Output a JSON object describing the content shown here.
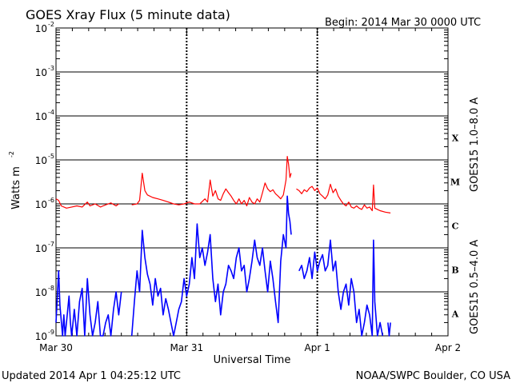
{
  "header": {
    "title": "GOES Xray Flux (5 minute data)",
    "begin": "Begin:  2014 Mar 30 0000 UTC"
  },
  "footer": {
    "updated": "Updated 2014 Apr  1 04:25:12 UTC",
    "credit": "NOAA/SWPC Boulder, CO USA"
  },
  "chart_data": {
    "type": "line",
    "title": "GOES Xray Flux (5 minute data)",
    "xlabel": "Universal Time",
    "ylabel": "Watts m",
    "ylabel_exp": "-2",
    "yscale": "log",
    "ylim": [
      1e-09,
      0.01
    ],
    "xlim_days": [
      0,
      3
    ],
    "x_ticks": [
      "Mar 30",
      "Mar 31",
      "Apr 1",
      "Apr 2"
    ],
    "y_ticks": [
      {
        "base": "10",
        "exp": "-2"
      },
      {
        "base": "10",
        "exp": "-3"
      },
      {
        "base": "10",
        "exp": "-4"
      },
      {
        "base": "10",
        "exp": "-5"
      },
      {
        "base": "10",
        "exp": "-6"
      },
      {
        "base": "10",
        "exp": "-7"
      },
      {
        "base": "10",
        "exp": "-8"
      },
      {
        "base": "10",
        "exp": "-9"
      }
    ],
    "flare_classes": [
      "X",
      "M",
      "C",
      "B",
      "A"
    ],
    "grid": true,
    "series": [
      {
        "name": "GOES15 1.0–8.0 A",
        "color": "#ff0000",
        "points": [
          [
            0.0,
            1.3e-06
          ],
          [
            0.02,
            1.2e-06
          ],
          [
            0.04,
            9e-07
          ],
          [
            0.08,
            8e-07
          ],
          [
            0.12,
            8.5e-07
          ],
          [
            0.16,
            9e-07
          ],
          [
            0.2,
            8.5e-07
          ],
          [
            0.24,
            1.1e-06
          ],
          [
            0.26,
            9e-07
          ],
          [
            0.3,
            1e-06
          ],
          [
            0.34,
            8.5e-07
          ],
          [
            0.38,
            9.5e-07
          ],
          [
            0.42,
            1.05e-06
          ],
          [
            0.46,
            9e-07
          ],
          [
            0.48,
            1e-06
          ],
          [
            0.55,
            null
          ],
          [
            0.58,
            9.5e-07
          ],
          [
            0.62,
            1e-06
          ],
          [
            0.64,
            1.2e-06
          ],
          [
            0.66,
            5e-06
          ],
          [
            0.68,
            2e-06
          ],
          [
            0.7,
            1.6e-06
          ],
          [
            0.74,
            1.4e-06
          ],
          [
            0.78,
            1.3e-06
          ],
          [
            0.82,
            1.2e-06
          ],
          [
            0.86,
            1.1e-06
          ],
          [
            0.9,
            1e-06
          ],
          [
            0.94,
            9.5e-07
          ],
          [
            0.98,
            1e-06
          ],
          [
            1.02,
            1.1e-06
          ],
          [
            1.06,
            1e-06
          ],
          [
            1.1,
            1e-06
          ],
          [
            1.14,
            1.3e-06
          ],
          [
            1.16,
            1.1e-06
          ],
          [
            1.18,
            3.5e-06
          ],
          [
            1.2,
            1.5e-06
          ],
          [
            1.22,
            2e-06
          ],
          [
            1.24,
            1.3e-06
          ],
          [
            1.26,
            1.2e-06
          ],
          [
            1.28,
            1.7e-06
          ],
          [
            1.3,
            2.2e-06
          ],
          [
            1.32,
            1.8e-06
          ],
          [
            1.34,
            1.5e-06
          ],
          [
            1.36,
            1.2e-06
          ],
          [
            1.38,
            1e-06
          ],
          [
            1.4,
            1.3e-06
          ],
          [
            1.42,
            1e-06
          ],
          [
            1.44,
            1.2e-06
          ],
          [
            1.46,
            9e-07
          ],
          [
            1.48,
            1.4e-06
          ],
          [
            1.5,
            1.1e-06
          ],
          [
            1.52,
            1e-06
          ],
          [
            1.54,
            1.3e-06
          ],
          [
            1.56,
            1.1e-06
          ],
          [
            1.58,
            1.8e-06
          ],
          [
            1.6,
            3e-06
          ],
          [
            1.62,
            2.2e-06
          ],
          [
            1.64,
            1.9e-06
          ],
          [
            1.66,
            2.1e-06
          ],
          [
            1.68,
            1.7e-06
          ],
          [
            1.7,
            1.5e-06
          ],
          [
            1.72,
            1.3e-06
          ],
          [
            1.74,
            1.6e-06
          ],
          [
            1.76,
            3.5e-06
          ],
          [
            1.77,
            1.2e-05
          ],
          [
            1.78,
            8e-06
          ],
          [
            1.79,
            4e-06
          ],
          [
            1.8,
            5e-06
          ],
          [
            1.82,
            null
          ],
          [
            1.84,
            2.2e-06
          ],
          [
            1.86,
            2e-06
          ],
          [
            1.88,
            1.7e-06
          ],
          [
            1.9,
            2.1e-06
          ],
          [
            1.92,
            1.9e-06
          ],
          [
            1.94,
            2.3e-06
          ],
          [
            1.96,
            2.5e-06
          ],
          [
            1.98,
            2e-06
          ],
          [
            2.0,
            2.3e-06
          ],
          [
            2.02,
            1.7e-06
          ],
          [
            2.04,
            1.5e-06
          ],
          [
            2.06,
            1.3e-06
          ],
          [
            2.08,
            1.6e-06
          ],
          [
            2.1,
            2.8e-06
          ],
          [
            2.12,
            1.8e-06
          ],
          [
            2.14,
            2.2e-06
          ],
          [
            2.16,
            1.5e-06
          ],
          [
            2.18,
            1.2e-06
          ],
          [
            2.2,
            1e-06
          ],
          [
            2.22,
            9e-07
          ],
          [
            2.24,
            1.1e-06
          ],
          [
            2.26,
            8.5e-07
          ],
          [
            2.28,
            8e-07
          ],
          [
            2.3,
            9e-07
          ],
          [
            2.32,
            8e-07
          ],
          [
            2.34,
            7.5e-07
          ],
          [
            2.36,
            9.5e-07
          ],
          [
            2.38,
            8e-07
          ],
          [
            2.4,
            8.5e-07
          ],
          [
            2.42,
            7e-07
          ],
          [
            2.43,
            2.7e-06
          ],
          [
            2.44,
            8e-07
          ],
          [
            2.46,
            7.5e-07
          ],
          [
            2.48,
            7e-07
          ],
          [
            2.52,
            6.5e-07
          ],
          [
            2.56,
            6.2e-07
          ]
        ]
      },
      {
        "name": "GOES15 0.5–4.0 A",
        "color": "#0000ff",
        "points": [
          [
            0.0,
            2e-09
          ],
          [
            0.02,
            3e-08
          ],
          [
            0.03,
            5e-09
          ],
          [
            0.05,
            1e-09
          ],
          [
            0.06,
            3e-09
          ],
          [
            0.07,
            1e-09
          ],
          [
            0.08,
            2e-09
          ],
          [
            0.1,
            8e-09
          ],
          [
            0.11,
            2e-09
          ],
          [
            0.12,
            1e-09
          ],
          [
            0.14,
            4e-09
          ],
          [
            0.16,
            1e-09
          ],
          [
            0.18,
            6e-09
          ],
          [
            0.2,
            1.2e-08
          ],
          [
            0.22,
            1e-09
          ],
          [
            0.24,
            2e-08
          ],
          [
            0.26,
            3e-09
          ],
          [
            0.28,
            1e-09
          ],
          [
            0.3,
            2e-09
          ],
          [
            0.32,
            6e-09
          ],
          [
            0.34,
            1e-09
          ],
          [
            0.36,
            1e-09
          ],
          [
            0.38,
            2e-09
          ],
          [
            0.4,
            3e-09
          ],
          [
            0.42,
            1e-09
          ],
          [
            0.44,
            4e-09
          ],
          [
            0.46,
            1e-08
          ],
          [
            0.48,
            3e-09
          ],
          [
            0.5,
            1e-08
          ],
          [
            0.55,
            null
          ],
          [
            0.58,
            1e-09
          ],
          [
            0.6,
            6e-09
          ],
          [
            0.62,
            3e-08
          ],
          [
            0.64,
            1e-08
          ],
          [
            0.66,
            2.5e-07
          ],
          [
            0.68,
            6e-08
          ],
          [
            0.7,
            2.5e-08
          ],
          [
            0.72,
            1.5e-08
          ],
          [
            0.74,
            5e-09
          ],
          [
            0.76,
            2e-08
          ],
          [
            0.78,
            8e-09
          ],
          [
            0.8,
            1.2e-08
          ],
          [
            0.82,
            3e-09
          ],
          [
            0.84,
            7e-09
          ],
          [
            0.86,
            4e-09
          ],
          [
            0.88,
            2e-09
          ],
          [
            0.9,
            1e-09
          ],
          [
            0.92,
            2e-09
          ],
          [
            0.94,
            4e-09
          ],
          [
            0.96,
            6e-09
          ],
          [
            0.98,
            2e-08
          ],
          [
            1.0,
            8e-09
          ],
          [
            1.02,
            1.5e-08
          ],
          [
            1.04,
            6e-08
          ],
          [
            1.06,
            2e-08
          ],
          [
            1.08,
            3.5e-07
          ],
          [
            1.1,
            6e-08
          ],
          [
            1.12,
            1e-07
          ],
          [
            1.14,
            4e-08
          ],
          [
            1.16,
            8e-08
          ],
          [
            1.18,
            2e-07
          ],
          [
            1.2,
            2e-08
          ],
          [
            1.22,
            6e-09
          ],
          [
            1.24,
            1.5e-08
          ],
          [
            1.26,
            3e-09
          ],
          [
            1.28,
            1e-08
          ],
          [
            1.3,
            1.5e-08
          ],
          [
            1.32,
            4e-08
          ],
          [
            1.34,
            3e-08
          ],
          [
            1.36,
            2e-08
          ],
          [
            1.38,
            6e-08
          ],
          [
            1.4,
            1e-07
          ],
          [
            1.42,
            3e-08
          ],
          [
            1.44,
            4e-08
          ],
          [
            1.46,
            1e-08
          ],
          [
            1.48,
            2e-08
          ],
          [
            1.5,
            5e-08
          ],
          [
            1.52,
            1.5e-07
          ],
          [
            1.54,
            6e-08
          ],
          [
            1.56,
            4e-08
          ],
          [
            1.58,
            1e-07
          ],
          [
            1.6,
            3e-08
          ],
          [
            1.62,
            1e-08
          ],
          [
            1.64,
            5e-08
          ],
          [
            1.66,
            2e-08
          ],
          [
            1.68,
            6e-09
          ],
          [
            1.7,
            2e-09
          ],
          [
            1.72,
            5e-08
          ],
          [
            1.74,
            2e-07
          ],
          [
            1.76,
            1e-07
          ],
          [
            1.77,
            1.5e-06
          ],
          [
            1.78,
            6e-07
          ],
          [
            1.79,
            4e-07
          ],
          [
            1.8,
            2e-07
          ],
          [
            1.82,
            null
          ],
          [
            1.86,
            3e-08
          ],
          [
            1.88,
            4e-08
          ],
          [
            1.9,
            2e-08
          ],
          [
            1.92,
            3e-08
          ],
          [
            1.94,
            6e-08
          ],
          [
            1.96,
            2e-08
          ],
          [
            1.98,
            8e-08
          ],
          [
            2.0,
            3e-08
          ],
          [
            2.02,
            5e-08
          ],
          [
            2.04,
            7e-08
          ],
          [
            2.06,
            3e-08
          ],
          [
            2.08,
            4e-08
          ],
          [
            2.1,
            1.5e-07
          ],
          [
            2.12,
            3e-08
          ],
          [
            2.14,
            5e-08
          ],
          [
            2.16,
            1e-08
          ],
          [
            2.18,
            4e-09
          ],
          [
            2.2,
            1e-08
          ],
          [
            2.22,
            1.5e-08
          ],
          [
            2.24,
            5e-09
          ],
          [
            2.26,
            2e-08
          ],
          [
            2.28,
            1e-08
          ],
          [
            2.3,
            2e-09
          ],
          [
            2.32,
            4e-09
          ],
          [
            2.34,
            1e-09
          ],
          [
            2.36,
            2e-09
          ],
          [
            2.38,
            5e-09
          ],
          [
            2.4,
            3e-09
          ],
          [
            2.42,
            1e-09
          ],
          [
            2.43,
            1.5e-07
          ],
          [
            2.44,
            6e-09
          ],
          [
            2.46,
            1e-09
          ],
          [
            2.48,
            2e-09
          ],
          [
            2.5,
            1e-09
          ],
          [
            2.52,
            null
          ],
          [
            2.54,
            2e-09
          ],
          [
            2.55,
            1e-09
          ],
          [
            2.56,
            2e-09
          ]
        ]
      }
    ]
  }
}
